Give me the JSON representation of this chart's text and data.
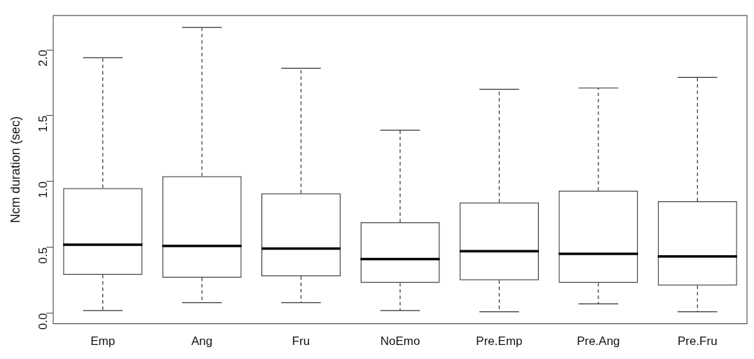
{
  "chart_data": {
    "type": "box",
    "ylabel": "Ncm duration (sec)",
    "categories": [
      "Emp",
      "Ang",
      "Fru",
      "NoEmo",
      "Pre.Emp",
      "Pre.Ang",
      "Pre.Fru"
    ],
    "boxes": [
      {
        "low": 0.02,
        "q1": 0.29,
        "median": 0.52,
        "q3": 0.95,
        "high": 1.94
      },
      {
        "low": 0.08,
        "q1": 0.27,
        "median": 0.51,
        "q3": 1.04,
        "high": 2.17
      },
      {
        "low": 0.08,
        "q1": 0.28,
        "median": 0.49,
        "q3": 0.91,
        "high": 1.86
      },
      {
        "low": 0.02,
        "q1": 0.23,
        "median": 0.41,
        "q3": 0.69,
        "high": 1.39
      },
      {
        "low": 0.01,
        "q1": 0.25,
        "median": 0.47,
        "q3": 0.84,
        "high": 1.7
      },
      {
        "low": 0.07,
        "q1": 0.23,
        "median": 0.45,
        "q3": 0.93,
        "high": 1.71
      },
      {
        "low": 0.01,
        "q1": 0.21,
        "median": 0.43,
        "q3": 0.85,
        "high": 1.79
      }
    ],
    "color": "#444444",
    "ylim": [
      -0.08,
      2.26
    ],
    "yticks": [
      {
        "value": 0,
        "label": "0.0"
      },
      0.5,
      {
        "value": 1,
        "label": "1.0"
      },
      1.5,
      {
        "value": 2,
        "label": "2.0"
      }
    ],
    "grid": false,
    "legend": false
  }
}
